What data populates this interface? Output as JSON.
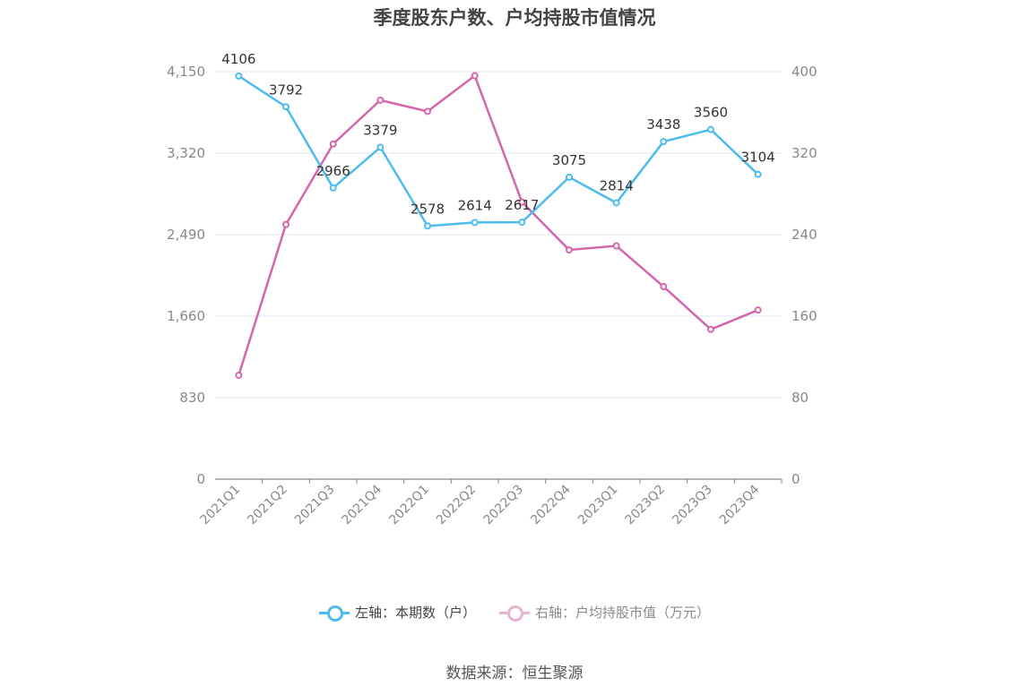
{
  "chart_data": {
    "type": "line",
    "title": "季度股东户数、户均持股市值情况",
    "categories": [
      "2021Q1",
      "2021Q2",
      "2021Q3",
      "2021Q4",
      "2022Q1",
      "2022Q2",
      "2022Q3",
      "2022Q4",
      "2023Q1",
      "2023Q2",
      "2023Q3",
      "2023Q4"
    ],
    "left_axis": {
      "ticks": [
        "0",
        "830",
        "1,660",
        "2,490",
        "3,320",
        "4,150"
      ],
      "ylim": [
        0,
        4150
      ]
    },
    "right_axis": {
      "ticks": [
        "0",
        "80",
        "160",
        "240",
        "320",
        "400"
      ],
      "ylim": [
        0,
        400
      ]
    },
    "series": [
      {
        "name": "左轴：本期数（户）",
        "axis": "left",
        "color": "#4dbbee",
        "values": [
          4106,
          3792,
          2966,
          3379,
          2578,
          2614,
          2617,
          3075,
          2814,
          3438,
          3560,
          3104
        ],
        "labels": [
          "4106",
          "3792",
          "2966",
          "3379",
          "2578",
          "2614",
          "2617",
          "3075",
          "2814",
          "3438",
          "3560",
          "3104"
        ]
      },
      {
        "name": "右轴：户均持股市值（万元）",
        "axis": "right",
        "color": "#d466ac",
        "values": [
          102,
          250,
          329,
          372,
          361,
          396,
          272,
          225,
          229,
          189,
          147,
          166
        ]
      }
    ],
    "grid": true,
    "legend_position": "bottom"
  },
  "source": "数据来源：恒生聚源"
}
